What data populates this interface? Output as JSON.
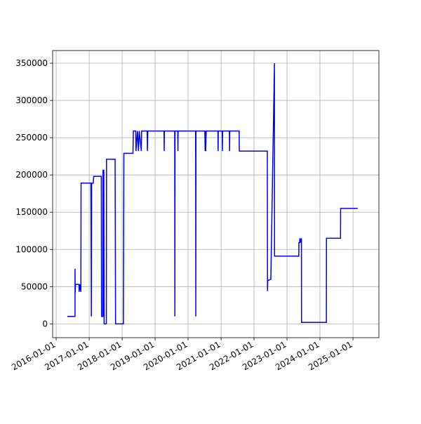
{
  "chart_data": {
    "type": "line",
    "color": "#0000ff",
    "grid": true,
    "x": [
      "2016-05-04",
      "2016-07-28",
      "2016-07-28",
      "2016-07-30",
      "2016-08-02",
      "2016-09-10",
      "2016-09-12",
      "2016-09-20",
      "2016-10-01",
      "2016-10-03",
      "2017-01-20",
      "2017-01-25",
      "2017-01-28",
      "2017-02-15",
      "2017-02-20",
      "2017-05-15",
      "2017-05-18",
      "2017-06-01",
      "2017-06-03",
      "2017-06-08",
      "2017-06-12",
      "2017-06-15",
      "2017-07-10",
      "2017-07-12",
      "2017-10-15",
      "2017-10-20",
      "2018-01-15",
      "2018-01-20",
      "2018-05-01",
      "2018-05-05",
      "2018-06-01",
      "2018-06-03",
      "2018-06-20",
      "2018-07-01",
      "2018-07-10",
      "2018-08-01",
      "2018-08-05",
      "2018-10-05",
      "2018-10-08",
      "2018-10-12",
      "2019-04-10",
      "2019-04-12",
      "2019-04-14",
      "2019-08-06",
      "2019-08-08",
      "2019-08-10",
      "2019-09-09",
      "2019-09-11",
      "2019-09-13",
      "2020-03-25",
      "2020-03-27",
      "2020-03-29",
      "2020-07-05",
      "2020-07-08",
      "2020-07-12",
      "2020-07-15",
      "2020-07-20",
      "2020-11-27",
      "2020-11-29",
      "2020-12-01",
      "2021-01-14",
      "2021-01-16",
      "2021-01-18",
      "2021-04-03",
      "2021-04-05",
      "2021-04-07",
      "2021-07-20",
      "2021-07-22",
      "2022-05-28",
      "2022-05-30",
      "2022-06-02",
      "2022-07-06",
      "2022-08-15",
      "2022-08-16",
      "2023-05-12",
      "2023-05-13",
      "2023-05-20",
      "2023-05-24",
      "2023-05-28",
      "2023-06-10",
      "2023-06-11",
      "2024-03-12",
      "2024-03-13",
      "2024-08-16",
      "2024-08-17",
      "2025-02-22"
    ],
    "values": [
      10000,
      10000,
      74000,
      42000,
      53000,
      53000,
      43000,
      53000,
      43000,
      189000,
      189000,
      10000,
      189000,
      189000,
      198000,
      198000,
      10000,
      10000,
      207000,
      10000,
      207000,
      0,
      0,
      221000,
      221000,
      0,
      0,
      229000,
      229000,
      259000,
      259000,
      232000,
      259000,
      232000,
      259000,
      232000,
      259000,
      259000,
      232000,
      259000,
      259000,
      232000,
      259000,
      259000,
      10000,
      259000,
      259000,
      232000,
      259000,
      259000,
      10000,
      259000,
      259000,
      232000,
      259000,
      232000,
      259000,
      259000,
      232000,
      259000,
      259000,
      232000,
      259000,
      259000,
      232000,
      259000,
      259000,
      232000,
      232000,
      44000,
      58000,
      60000,
      350000,
      91000,
      91000,
      109000,
      109000,
      115000,
      109000,
      115000,
      2000,
      2000,
      115000,
      115000,
      155000,
      155000
    ],
    "xlim": [
      "2015-11-23",
      "2025-10-15"
    ],
    "xticks": [
      "2016-01-01",
      "2017-01-01",
      "2018-01-01",
      "2019-01-01",
      "2020-01-01",
      "2021-01-01",
      "2022-01-01",
      "2023-01-01",
      "2024-01-01",
      "2025-01-01"
    ],
    "ylim": [
      -18500,
      367000
    ],
    "yticks": [
      0,
      50000,
      100000,
      150000,
      200000,
      250000,
      300000,
      350000
    ]
  }
}
